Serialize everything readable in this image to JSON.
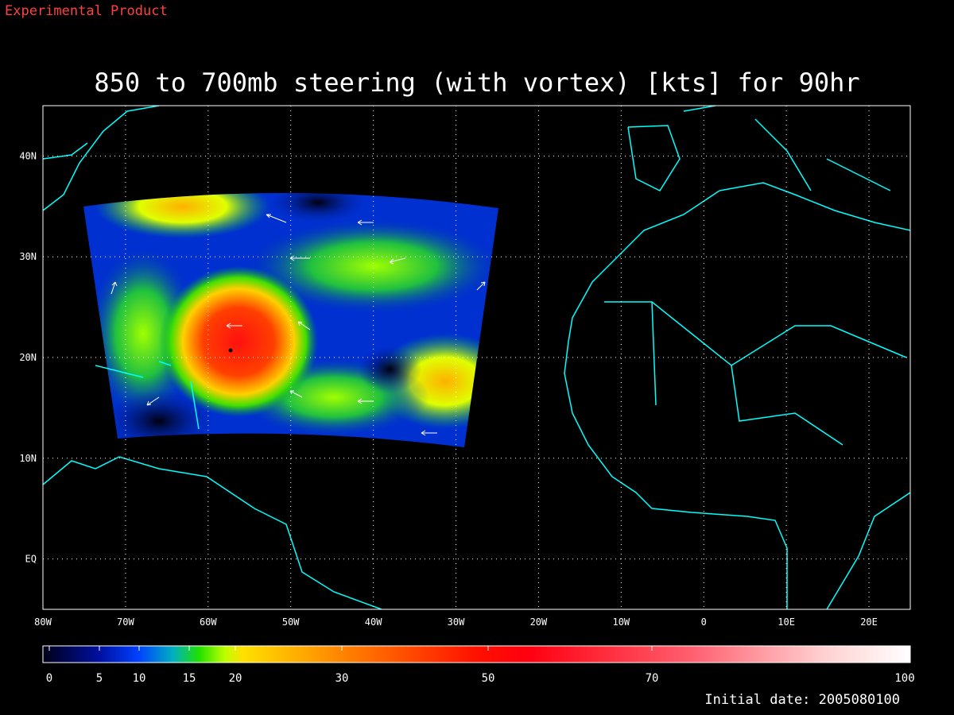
{
  "header": {
    "label": "Experimental Product"
  },
  "map": {
    "title": "850 to 700mb steering (with vortex) [kts] for 90hr",
    "xlim": [
      -80,
      25
    ],
    "ylim": [
      -5,
      45
    ],
    "xticks": [
      {
        "value": -80,
        "label": "80W"
      },
      {
        "value": -70,
        "label": "70W"
      },
      {
        "value": -60,
        "label": "60W"
      },
      {
        "value": -50,
        "label": "50W"
      },
      {
        "value": -40,
        "label": "40W"
      },
      {
        "value": -30,
        "label": "30W"
      },
      {
        "value": -20,
        "label": "20W"
      },
      {
        "value": -10,
        "label": "10W"
      },
      0,
      {
        "value": 10,
        "label": "10E"
      },
      {
        "value": 20,
        "label": "20E"
      }
    ],
    "yticks": [
      {
        "value": 0,
        "label": "EQ"
      },
      {
        "value": 10,
        "label": "10N"
      },
      {
        "value": 20,
        "label": "20N"
      },
      {
        "value": 30,
        "label": "30N"
      },
      {
        "value": 40,
        "label": "40N"
      }
    ],
    "grid": true
  },
  "colorbar": {
    "ticks": [
      0,
      5,
      10,
      15,
      20,
      30,
      50,
      70,
      100
    ]
  },
  "footer": {
    "label": "Initial date: 2005080100"
  }
}
